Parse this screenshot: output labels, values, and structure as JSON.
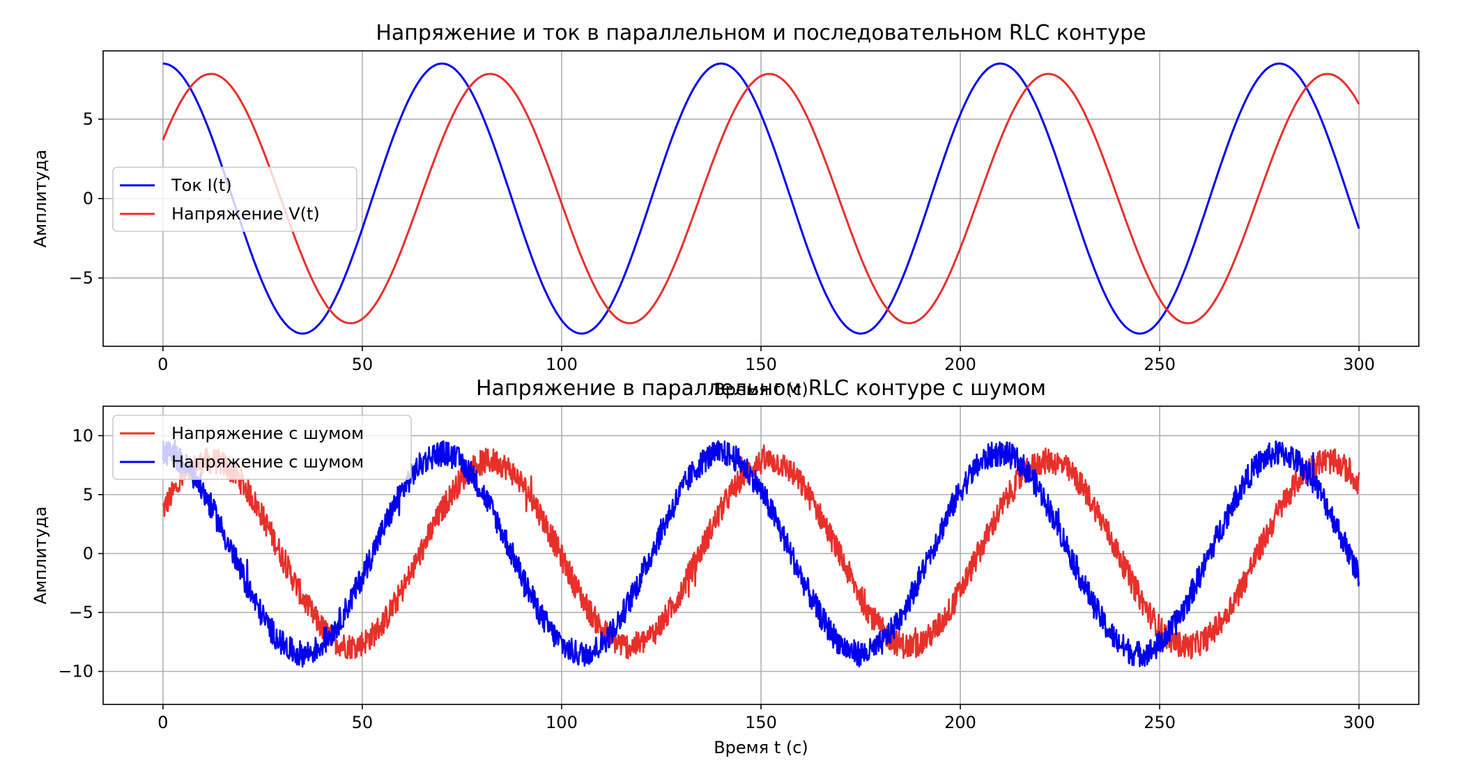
{
  "chart_data": [
    {
      "type": "line",
      "title": "Напряжение и ток в параллельном и последовательном RLC контуре",
      "xlabel": "Время t (с)",
      "ylabel": "Амплитуда",
      "xlim": [
        -15,
        315
      ],
      "ylim": [
        -9.3,
        9.3
      ],
      "xticks": [
        0,
        50,
        100,
        150,
        200,
        250,
        300
      ],
      "xtick_labels": [
        "0",
        "50",
        "100",
        "150",
        "200",
        "250",
        "300"
      ],
      "yticks": [
        -5,
        0,
        5
      ],
      "ytick_labels": [
        "−5",
        "0",
        "5"
      ],
      "grid": true,
      "legend_position": "center-left",
      "series": [
        {
          "name": "Ток I(t)",
          "color": "#0000ee",
          "amplitude": 8.5,
          "period": 70,
          "phase_deg": 0,
          "t_start": 0,
          "t_end": 300
        },
        {
          "name": "Напряжение V(t)",
          "color": "#e8302a",
          "amplitude": 7.85,
          "period": 70,
          "phase_deg": -62,
          "t_start": 0,
          "t_end": 300
        }
      ]
    },
    {
      "type": "line",
      "title": "Напряжение в параллельном RLC контуре с шумом",
      "xlabel": "Время t (с)",
      "ylabel": "Амплитуда",
      "xlim": [
        -15,
        315
      ],
      "ylim": [
        -12.8,
        12.5
      ],
      "xticks": [
        0,
        50,
        100,
        150,
        200,
        250,
        300
      ],
      "xtick_labels": [
        "0",
        "50",
        "100",
        "150",
        "200",
        "250",
        "300"
      ],
      "yticks": [
        -10,
        -5,
        0,
        5,
        10
      ],
      "ytick_labels": [
        "−10",
        "−5",
        "0",
        "5",
        "10"
      ],
      "grid": true,
      "legend_position": "top-left",
      "series": [
        {
          "name": "Напряжение с шумом",
          "color": "#e8302a",
          "amplitude": 7.85,
          "period": 70,
          "phase_deg": -62,
          "noise_amplitude": 1.1,
          "t_start": 0,
          "t_end": 300
        },
        {
          "name": "Напряжение с шумом",
          "color": "#0000ee",
          "amplitude": 8.5,
          "period": 70,
          "phase_deg": 0,
          "noise_amplitude": 1.1,
          "t_start": 0,
          "t_end": 300
        }
      ]
    }
  ]
}
